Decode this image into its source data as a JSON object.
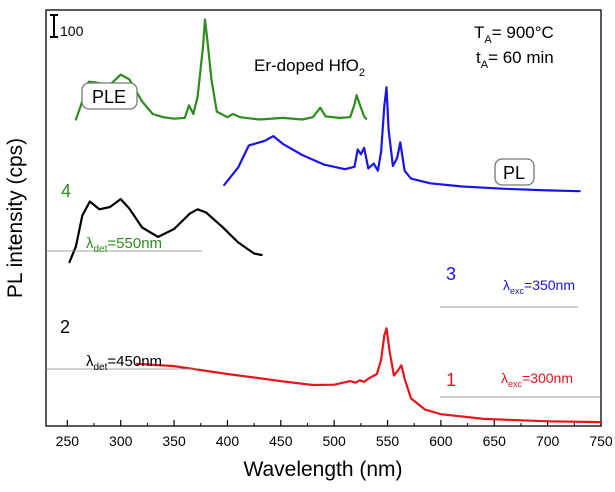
{
  "chart_data": {
    "type": "line",
    "title": "Er-doped HfO2",
    "title_main": "Er-doped HfO",
    "title_sub": "2",
    "xlabel": "Wavelength (nm)",
    "ylabel": "PL intensity (cps)",
    "xlim": [
      230,
      750
    ],
    "x_ticks": [
      250,
      300,
      350,
      400,
      450,
      500,
      550,
      600,
      650,
      700,
      750
    ],
    "y_ticks": "none",
    "grid": false,
    "scale_bar_label": "100",
    "conditions": {
      "ta_main": "T",
      "ta_sub": "A",
      "ta_value": "= 900°C",
      "tt_main": "t",
      "tt_sub": "A",
      "tt_value": "= 60 min"
    },
    "colors": {
      "series1": "#e8141b",
      "series2": "#000000",
      "series3": "#1a14e6",
      "series4": "#2e8b1e"
    },
    "labels": {
      "ple": "PLE",
      "pl": "PL",
      "n1": "1",
      "n2": "2",
      "n3": "3",
      "n4": "4",
      "ldet550_main": "λ",
      "ldet550_sub": "det",
      "ldet550_val": "=550nm",
      "ldet450_main": "λ",
      "ldet450_sub": "det",
      "ldet450_val": "=450nm",
      "lexc350_main": "λ",
      "lexc350_sub": "exc",
      "lexc350_val": "=350nm",
      "lexc300_main": "λ",
      "lexc300_sub": "exc",
      "lexc300_val": "=300nm"
    },
    "series": [
      {
        "id": "1",
        "kind": "PL",
        "excitation_nm": 300,
        "color": "#e8141b",
        "points": [
          [
            315,
            395
          ],
          [
            350,
            380
          ],
          [
            400,
            330
          ],
          [
            450,
            285
          ],
          [
            480,
            260
          ],
          [
            500,
            262
          ],
          [
            515,
            285
          ],
          [
            520,
            275
          ],
          [
            524,
            290
          ],
          [
            528,
            280
          ],
          [
            532,
            300
          ],
          [
            540,
            330
          ],
          [
            544,
            420
          ],
          [
            547,
            575
          ],
          [
            549,
            620
          ],
          [
            552,
            470
          ],
          [
            556,
            320
          ],
          [
            560,
            355
          ],
          [
            563,
            385
          ],
          [
            566,
            300
          ],
          [
            572,
            175
          ],
          [
            585,
            105
          ],
          [
            600,
            75
          ],
          [
            640,
            45
          ],
          [
            700,
            30
          ],
          [
            750,
            25
          ]
        ]
      },
      {
        "id": "2",
        "kind": "PLE",
        "detection_nm": 450,
        "color": "#000000",
        "points": [
          [
            252,
            1040
          ],
          [
            258,
            1140
          ],
          [
            264,
            1335
          ],
          [
            271,
            1425
          ],
          [
            280,
            1375
          ],
          [
            290,
            1390
          ],
          [
            300,
            1440
          ],
          [
            308,
            1380
          ],
          [
            320,
            1260
          ],
          [
            335,
            1200
          ],
          [
            350,
            1250
          ],
          [
            365,
            1350
          ],
          [
            372,
            1375
          ],
          [
            380,
            1355
          ],
          [
            395,
            1265
          ],
          [
            410,
            1165
          ],
          [
            425,
            1095
          ],
          [
            432,
            1085
          ]
        ]
      },
      {
        "id": "3",
        "kind": "PL",
        "excitation_nm": 350,
        "color": "#1a14e6",
        "points": [
          [
            397,
            1530
          ],
          [
            410,
            1640
          ],
          [
            420,
            1780
          ],
          [
            435,
            1810
          ],
          [
            443,
            1840
          ],
          [
            452,
            1790
          ],
          [
            470,
            1720
          ],
          [
            490,
            1660
          ],
          [
            510,
            1630
          ],
          [
            519,
            1645
          ],
          [
            522,
            1755
          ],
          [
            525,
            1725
          ],
          [
            528,
            1765
          ],
          [
            532,
            1635
          ],
          [
            537,
            1665
          ],
          [
            541,
            1620
          ],
          [
            544,
            1740
          ],
          [
            547,
            2030
          ],
          [
            549,
            2150
          ],
          [
            551,
            1880
          ],
          [
            555,
            1650
          ],
          [
            559,
            1700
          ],
          [
            562,
            1800
          ],
          [
            566,
            1620
          ],
          [
            572,
            1570
          ],
          [
            590,
            1540
          ],
          [
            620,
            1520
          ],
          [
            660,
            1505
          ],
          [
            700,
            1495
          ],
          [
            730,
            1490
          ]
        ]
      },
      {
        "id": "4",
        "kind": "PLE",
        "detection_nm": 550,
        "color": "#2e8b1e",
        "points": [
          [
            258,
            1945
          ],
          [
            264,
            2060
          ],
          [
            270,
            2185
          ],
          [
            276,
            2180
          ],
          [
            290,
            2165
          ],
          [
            300,
            2230
          ],
          [
            308,
            2200
          ],
          [
            320,
            2060
          ],
          [
            330,
            1980
          ],
          [
            340,
            1960
          ],
          [
            350,
            1950
          ],
          [
            360,
            1955
          ],
          [
            364,
            2035
          ],
          [
            368,
            1980
          ],
          [
            372,
            2090
          ],
          [
            377,
            2400
          ],
          [
            379,
            2580
          ],
          [
            381,
            2460
          ],
          [
            385,
            2200
          ],
          [
            390,
            1995
          ],
          [
            400,
            1960
          ],
          [
            405,
            1980
          ],
          [
            412,
            1960
          ],
          [
            430,
            1945
          ],
          [
            452,
            1955
          ],
          [
            470,
            1945
          ],
          [
            480,
            1960
          ],
          [
            487,
            2020
          ],
          [
            492,
            1965
          ],
          [
            505,
            1955
          ],
          [
            515,
            1960
          ],
          [
            519,
            2040
          ],
          [
            521,
            2100
          ],
          [
            524,
            2040
          ],
          [
            528,
            1965
          ],
          [
            530,
            1950
          ]
        ]
      }
    ]
  }
}
